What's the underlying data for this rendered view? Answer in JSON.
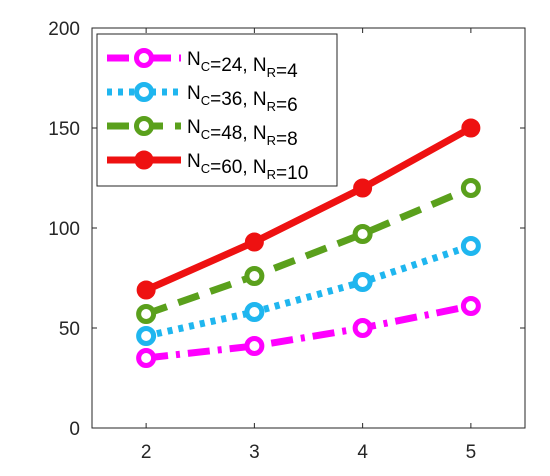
{
  "chart_data": {
    "type": "line",
    "title": "",
    "xlabel": "",
    "ylabel": "",
    "x": [
      2,
      3,
      4,
      5
    ],
    "xlim": [
      1.5,
      5.5
    ],
    "ylim": [
      0,
      200
    ],
    "xticks": [
      2,
      3,
      4,
      5
    ],
    "yticks": [
      0,
      50,
      100,
      150,
      200
    ],
    "grid": false,
    "legend_placement": "top-left",
    "series": [
      {
        "name": "N_C=24, N_R=4",
        "label_parts": {
          "n": "N",
          "sub1": "C",
          "mid": "=24, ",
          "n2": "N",
          "sub2": "R",
          "end": "=4"
        },
        "values": [
          35,
          41,
          50,
          61
        ],
        "color": "#ff00ff",
        "line_style": "dash-dot",
        "marker": "circle-open"
      },
      {
        "name": "N_C=36, N_R=6",
        "label_parts": {
          "n": "N",
          "sub1": "C",
          "mid": "=36, ",
          "n2": "N",
          "sub2": "R",
          "end": "=6"
        },
        "values": [
          46,
          58,
          73,
          91
        ],
        "color": "#1fb6ef",
        "line_style": "dotted",
        "marker": "circle-open"
      },
      {
        "name": "N_C=48, N_R=8",
        "label_parts": {
          "n": "N",
          "sub1": "C",
          "mid": "=48, ",
          "n2": "N",
          "sub2": "R",
          "end": "=8"
        },
        "values": [
          57,
          76,
          97,
          120
        ],
        "color": "#5aa01c",
        "line_style": "dashed",
        "marker": "circle-open"
      },
      {
        "name": "N_C=60, N_R=10",
        "label_parts": {
          "n": "N",
          "sub1": "C",
          "mid": "=60, ",
          "n2": "N",
          "sub2": "R",
          "end": "=10"
        },
        "values": [
          69,
          93,
          120,
          150
        ],
        "color": "#ee1111",
        "line_style": "solid",
        "marker": "circle-filled"
      }
    ]
  }
}
